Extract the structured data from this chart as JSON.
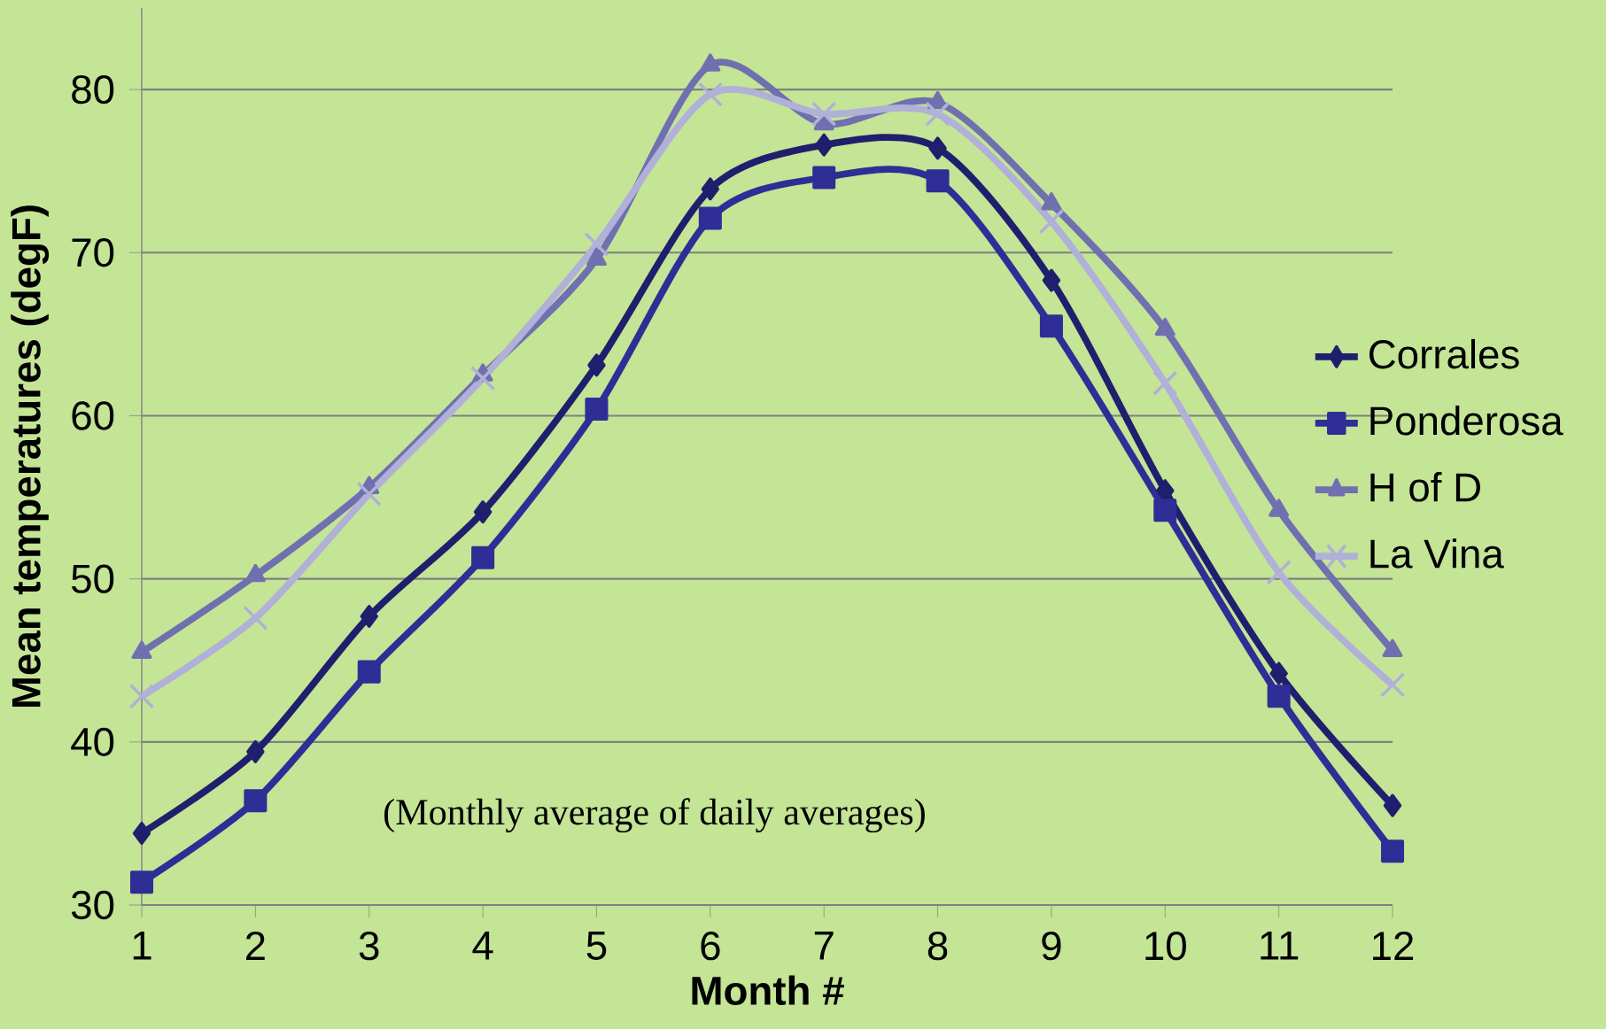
{
  "chart_data": {
    "type": "line",
    "xlabel": "Month #",
    "ylabel": "Mean temperatures (degF)",
    "annotations": [
      "(Monthly average of daily averages)"
    ],
    "x": [
      1,
      2,
      3,
      4,
      5,
      6,
      7,
      8,
      9,
      10,
      11,
      12
    ],
    "xlim": [
      1,
      12
    ],
    "xticks": [
      1,
      2,
      3,
      4,
      5,
      6,
      7,
      8,
      9,
      10,
      11,
      12
    ],
    "ylim": [
      30,
      85
    ],
    "yticks": [
      30,
      40,
      50,
      60,
      70,
      80
    ],
    "grid": "y",
    "legend": "right",
    "line_style": "solid",
    "series": [
      {
        "name": "Corrales",
        "color": "#1f1f6e",
        "marker": "diamond",
        "values": [
          34.4,
          39.4,
          47.7,
          54.1,
          63.1,
          73.9,
          76.6,
          76.4,
          68.3,
          55.4,
          44.2,
          36.1
        ]
      },
      {
        "name": "Ponderosa",
        "color": "#2e2e96",
        "marker": "square",
        "values": [
          31.4,
          36.4,
          44.3,
          51.3,
          60.4,
          72.1,
          74.6,
          74.4,
          65.5,
          54.2,
          42.8,
          33.3
        ]
      },
      {
        "name": "H of D",
        "color": "#7070b0",
        "marker": "triangle",
        "values": [
          45.5,
          50.2,
          55.6,
          62.5,
          69.6,
          81.5,
          77.9,
          79.2,
          73.0,
          65.3,
          54.2,
          45.6
        ]
      },
      {
        "name": "La Vina",
        "color": "#b0b0d8",
        "marker": "cross",
        "values": [
          42.8,
          47.6,
          55.2,
          62.3,
          70.5,
          79.7,
          78.5,
          78.5,
          71.9,
          62.0,
          50.4,
          43.5
        ]
      }
    ]
  }
}
